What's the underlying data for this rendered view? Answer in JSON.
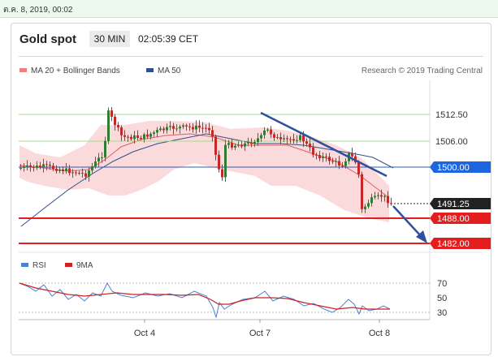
{
  "timestamp": "ต.ค. 8, 2019, 00:02",
  "header": {
    "title": "Gold spot",
    "timeframe": "30 MIN",
    "clock": "02:05:39 CET"
  },
  "legend": {
    "bb": {
      "label": "MA 20 + Bollinger Bands",
      "color": "#f08080"
    },
    "ma50": {
      "label": "MA 50",
      "color": "#2f4f8f"
    },
    "credit": "Research © 2019 Trading Central"
  },
  "levels": [
    {
      "label": "1512.50",
      "style": "green"
    },
    {
      "label": "1506.00",
      "style": "green"
    },
    {
      "label": "1500.00",
      "style": "blue"
    },
    {
      "label": "1491.25",
      "style": "dark"
    },
    {
      "label": "1488.00",
      "style": "red"
    },
    {
      "label": "1482.00",
      "style": "red"
    }
  ],
  "rsi": {
    "legend_rsi": "RSI",
    "legend_9ma": "9MA",
    "rsi_color": "#4f7fd0",
    "ma_color": "#cc2222",
    "ticks": [
      "70",
      "50",
      "30"
    ]
  },
  "xaxis": [
    "Oct 4",
    "Oct 7",
    "Oct 8"
  ],
  "colors": {
    "bull": "#2e7d32",
    "bear": "#c62828",
    "trend": "#2f4f9f",
    "band": "#f9d4d4"
  }
}
